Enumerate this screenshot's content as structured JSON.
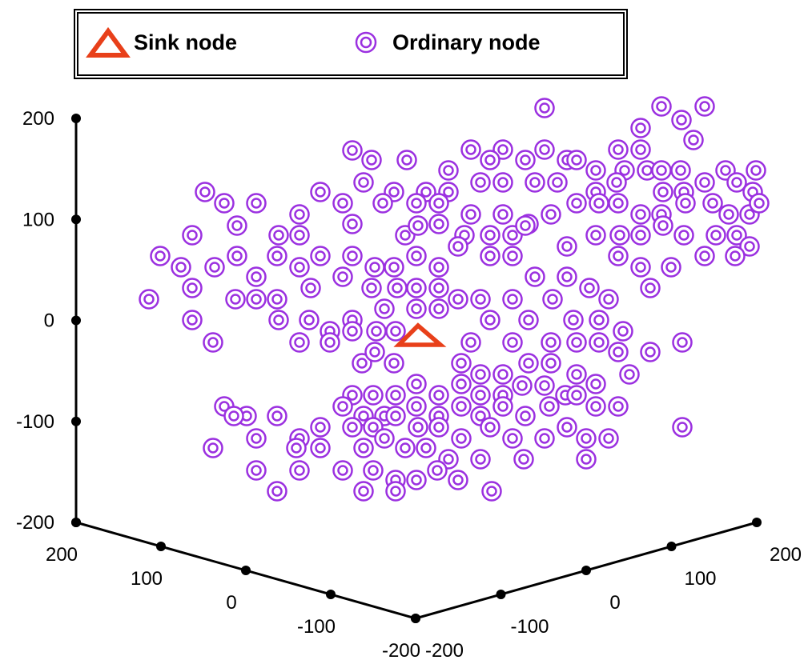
{
  "chart_data": {
    "type": "scatter",
    "colors": {
      "ordinary_node": "#9b30e0",
      "sink_node": "#e8401a",
      "axis": "#000000"
    },
    "legend": {
      "placement": "top",
      "items": [
        {
          "label": "Sink node",
          "marker": "triangle"
        },
        {
          "label": "Ordinary node",
          "marker": "double-circle"
        }
      ]
    },
    "axes": {
      "z": {
        "ticks": [
          "200",
          "100",
          "0",
          "-100",
          "-200"
        ],
        "range": [
          -200,
          200
        ]
      },
      "x_left": {
        "ticks": [
          "200",
          "100",
          "0",
          "-100",
          "-200"
        ],
        "range": [
          -200,
          200
        ]
      },
      "y_right": {
        "ticks": [
          "-200",
          "-100",
          "0",
          "100",
          "200"
        ],
        "range": [
          -200,
          200
        ]
      }
    },
    "series": [
      {
        "name": "Sink node",
        "points": [
          [
            0,
            0,
            0
          ]
        ]
      },
      {
        "name": "Ordinary node",
        "projected_points": [
          [
            680,
            135
          ],
          [
            826,
            133
          ],
          [
            880,
            133
          ],
          [
            851,
            150
          ],
          [
            800,
            160
          ],
          [
            866,
            175
          ],
          [
            440,
            188
          ],
          [
            508,
            200
          ],
          [
            588,
            187
          ],
          [
            628,
            187
          ],
          [
            680,
            187
          ],
          [
            772,
            187
          ],
          [
            800,
            187
          ],
          [
            464,
            200
          ],
          [
            612,
            200
          ],
          [
            656,
            200
          ],
          [
            708,
            200
          ],
          [
            720,
            200
          ],
          [
            744,
            213
          ],
          [
            560,
            213
          ],
          [
            780,
            213
          ],
          [
            808,
            213
          ],
          [
            826,
            213
          ],
          [
            850,
            213
          ],
          [
            880,
            228
          ],
          [
            906,
            213
          ],
          [
            944,
            213
          ],
          [
            454,
            228
          ],
          [
            492,
            240
          ],
          [
            532,
            240
          ],
          [
            560,
            240
          ],
          [
            600,
            228
          ],
          [
            628,
            228
          ],
          [
            668,
            228
          ],
          [
            696,
            228
          ],
          [
            744,
            240
          ],
          [
            770,
            228
          ],
          [
            828,
            240
          ],
          [
            854,
            240
          ],
          [
            920,
            228
          ],
          [
            940,
            240
          ],
          [
            256,
            240
          ],
          [
            280,
            254
          ],
          [
            320,
            254
          ],
          [
            400,
            240
          ],
          [
            428,
            254
          ],
          [
            478,
            254
          ],
          [
            520,
            254
          ],
          [
            548,
            254
          ],
          [
            588,
            268
          ],
          [
            628,
            268
          ],
          [
            660,
            280
          ],
          [
            688,
            268
          ],
          [
            720,
            254
          ],
          [
            748,
            254
          ],
          [
            772,
            254
          ],
          [
            800,
            268
          ],
          [
            826,
            268
          ],
          [
            856,
            254
          ],
          [
            890,
            254
          ],
          [
            910,
            268
          ],
          [
            936,
            268
          ],
          [
            948,
            254
          ],
          [
            240,
            294
          ],
          [
            296,
            282
          ],
          [
            348,
            294
          ],
          [
            374,
            294
          ],
          [
            374,
            268
          ],
          [
            440,
            280
          ],
          [
            506,
            294
          ],
          [
            522,
            282
          ],
          [
            548,
            280
          ],
          [
            580,
            294
          ],
          [
            612,
            294
          ],
          [
            640,
            294
          ],
          [
            656,
            282
          ],
          [
            708,
            308
          ],
          [
            744,
            294
          ],
          [
            774,
            294
          ],
          [
            800,
            294
          ],
          [
            828,
            282
          ],
          [
            854,
            294
          ],
          [
            894,
            294
          ],
          [
            920,
            294
          ],
          [
            936,
            308
          ],
          [
            200,
            320
          ],
          [
            226,
            334
          ],
          [
            268,
            334
          ],
          [
            296,
            320
          ],
          [
            346,
            320
          ],
          [
            374,
            334
          ],
          [
            400,
            320
          ],
          [
            440,
            320
          ],
          [
            468,
            334
          ],
          [
            492,
            334
          ],
          [
            520,
            320
          ],
          [
            548,
            334
          ],
          [
            572,
            308
          ],
          [
            612,
            320
          ],
          [
            640,
            320
          ],
          [
            668,
            346
          ],
          [
            708,
            346
          ],
          [
            772,
            320
          ],
          [
            800,
            334
          ],
          [
            838,
            334
          ],
          [
            880,
            320
          ],
          [
            918,
            320
          ],
          [
            186,
            374
          ],
          [
            240,
            360
          ],
          [
            320,
            346
          ],
          [
            346,
            374
          ],
          [
            388,
            360
          ],
          [
            428,
            346
          ],
          [
            464,
            360
          ],
          [
            496,
            360
          ],
          [
            520,
            360
          ],
          [
            548,
            360
          ],
          [
            572,
            374
          ],
          [
            600,
            374
          ],
          [
            640,
            374
          ],
          [
            690,
            374
          ],
          [
            736,
            360
          ],
          [
            760,
            374
          ],
          [
            812,
            360
          ],
          [
            240,
            400
          ],
          [
            294,
            374
          ],
          [
            320,
            374
          ],
          [
            348,
            400
          ],
          [
            386,
            400
          ],
          [
            412,
            414
          ],
          [
            440,
            400
          ],
          [
            480,
            386
          ],
          [
            520,
            386
          ],
          [
            548,
            386
          ],
          [
            612,
            400
          ],
          [
            660,
            400
          ],
          [
            716,
            400
          ],
          [
            748,
            400
          ],
          [
            778,
            414
          ],
          [
            266,
            428
          ],
          [
            374,
            428
          ],
          [
            412,
            428
          ],
          [
            440,
            414
          ],
          [
            470,
            414
          ],
          [
            494,
            414
          ],
          [
            588,
            428
          ],
          [
            640,
            428
          ],
          [
            688,
            428
          ],
          [
            720,
            428
          ],
          [
            748,
            428
          ],
          [
            772,
            440
          ],
          [
            812,
            440
          ],
          [
            852,
            428
          ],
          [
            452,
            454
          ],
          [
            468,
            440
          ],
          [
            492,
            454
          ],
          [
            576,
            454
          ],
          [
            600,
            468
          ],
          [
            628,
            468
          ],
          [
            660,
            454
          ],
          [
            688,
            454
          ],
          [
            720,
            468
          ],
          [
            786,
            468
          ],
          [
            440,
            494
          ],
          [
            466,
            494
          ],
          [
            494,
            494
          ],
          [
            520,
            480
          ],
          [
            548,
            494
          ],
          [
            576,
            480
          ],
          [
            600,
            494
          ],
          [
            628,
            494
          ],
          [
            652,
            482
          ],
          [
            680,
            482
          ],
          [
            706,
            494
          ],
          [
            744,
            480
          ],
          [
            280,
            508
          ],
          [
            308,
            520
          ],
          [
            346,
            520
          ],
          [
            400,
            534
          ],
          [
            428,
            508
          ],
          [
            454,
            520
          ],
          [
            480,
            520
          ],
          [
            520,
            508
          ],
          [
            548,
            520
          ],
          [
            576,
            508
          ],
          [
            600,
            520
          ],
          [
            628,
            508
          ],
          [
            656,
            520
          ],
          [
            686,
            508
          ],
          [
            720,
            494
          ],
          [
            744,
            508
          ],
          [
            772,
            508
          ],
          [
            292,
            520
          ],
          [
            320,
            548
          ],
          [
            374,
            548
          ],
          [
            440,
            534
          ],
          [
            466,
            534
          ],
          [
            494,
            520
          ],
          [
            522,
            534
          ],
          [
            548,
            534
          ],
          [
            576,
            548
          ],
          [
            612,
            534
          ],
          [
            640,
            548
          ],
          [
            680,
            548
          ],
          [
            708,
            534
          ],
          [
            732,
            548
          ],
          [
            760,
            548
          ],
          [
            852,
            534
          ],
          [
            266,
            560
          ],
          [
            370,
            560
          ],
          [
            400,
            560
          ],
          [
            454,
            560
          ],
          [
            480,
            548
          ],
          [
            506,
            560
          ],
          [
            532,
            560
          ],
          [
            560,
            574
          ],
          [
            600,
            574
          ],
          [
            654,
            574
          ],
          [
            732,
            574
          ],
          [
            320,
            588
          ],
          [
            374,
            588
          ],
          [
            428,
            588
          ],
          [
            466,
            588
          ],
          [
            494,
            600
          ],
          [
            520,
            600
          ],
          [
            546,
            588
          ],
          [
            572,
            600
          ],
          [
            346,
            614
          ],
          [
            454,
            614
          ],
          [
            494,
            614
          ],
          [
            614,
            614
          ]
        ]
      }
    ]
  }
}
